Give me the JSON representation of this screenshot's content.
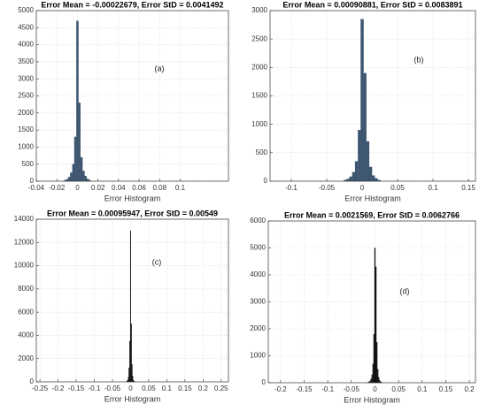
{
  "chart_data": [
    {
      "type": "histogram",
      "title": "Error Mean = -0.00022679, Error StD = 0.0041492",
      "xlabel": "Error Histogram",
      "annotation": "(a)",
      "bins": [
        -0.013,
        -0.011,
        -0.009,
        -0.007,
        -0.005,
        -0.003,
        -0.001,
        0.001,
        0.003,
        0.005,
        0.007,
        0.009,
        0.011,
        0.013
      ],
      "counts": [
        30,
        60,
        120,
        250,
        500,
        1300,
        4700,
        2300,
        700,
        300,
        150,
        70,
        30
      ],
      "color": "#3f5670",
      "xlim": [
        -0.04,
        0.147
      ],
      "xticks": [
        -0.04,
        -0.02,
        0,
        0.02,
        0.04,
        0.06,
        0.08,
        0.1
      ],
      "ylim": [
        0,
        5000
      ],
      "yticks": [
        0,
        500,
        1000,
        1500,
        2000,
        2500,
        3000,
        3500,
        4000,
        4500,
        5000
      ],
      "grid": true
    },
    {
      "type": "histogram",
      "title": "Error Mean = 0.00090881, Error StD = 0.0083891",
      "xlabel": "Error Histogram",
      "annotation": "(b)",
      "bins": [
        -0.026,
        -0.022,
        -0.018,
        -0.014,
        -0.01,
        -0.006,
        -0.002,
        0.002,
        0.006,
        0.01,
        0.014,
        0.018,
        0.022,
        0.026
      ],
      "counts": [
        20,
        40,
        80,
        160,
        350,
        900,
        2850,
        1900,
        700,
        250,
        100,
        50,
        20
      ],
      "color": "#3f5670",
      "xlim": [
        -0.13,
        0.16
      ],
      "xticks": [
        -0.1,
        -0.05,
        0,
        0.05,
        0.1,
        0.15
      ],
      "ylim": [
        0,
        3000
      ],
      "yticks": [
        0,
        500,
        1000,
        1500,
        2000,
        2500,
        3000
      ],
      "grid": true
    },
    {
      "type": "histogram",
      "title": "Error Mean = 0.00095947, Error StD = 0.00549",
      "xlabel": "Error Histogram",
      "annotation": "(c)",
      "bins": [
        -0.011,
        -0.009,
        -0.007,
        -0.005,
        -0.003,
        -0.001,
        0.001,
        0.003,
        0.005,
        0.007,
        0.009,
        0.011
      ],
      "counts": [
        50,
        150,
        400,
        1200,
        3500,
        13000,
        5000,
        1500,
        500,
        150,
        50
      ],
      "color": "#111111",
      "xlim": [
        -0.26,
        0.27
      ],
      "xticks": [
        -0.25,
        -0.2,
        -0.15,
        -0.1,
        -0.05,
        0,
        0.05,
        0.1,
        0.15,
        0.2,
        0.25
      ],
      "ylim": [
        0,
        14000
      ],
      "yticks": [
        0,
        2000,
        4000,
        6000,
        8000,
        10000,
        12000,
        14000
      ],
      "grid": true
    },
    {
      "type": "histogram",
      "title": "Error Mean = 0.0021569, Error StD = 0.0062766",
      "xlabel": "Error Histogram",
      "annotation": "(d)",
      "bins": [
        -0.015,
        -0.013,
        -0.011,
        -0.009,
        -0.007,
        -0.005,
        -0.003,
        -0.001,
        0.001,
        0.003,
        0.005,
        0.007,
        0.009,
        0.011,
        0.013,
        0.015
      ],
      "counts": [
        20,
        40,
        80,
        150,
        300,
        700,
        1800,
        5000,
        4300,
        1500,
        500,
        200,
        90,
        40,
        20
      ],
      "color": "#111111",
      "xlim": [
        -0.226,
        0.213
      ],
      "xticks": [
        -0.2,
        -0.15,
        -0.1,
        -0.05,
        0,
        0.05,
        0.1,
        0.15,
        0.2
      ],
      "ylim": [
        0,
        6000
      ],
      "yticks": [
        0,
        1000,
        2000,
        3000,
        4000,
        5000,
        6000
      ],
      "grid": true
    }
  ]
}
